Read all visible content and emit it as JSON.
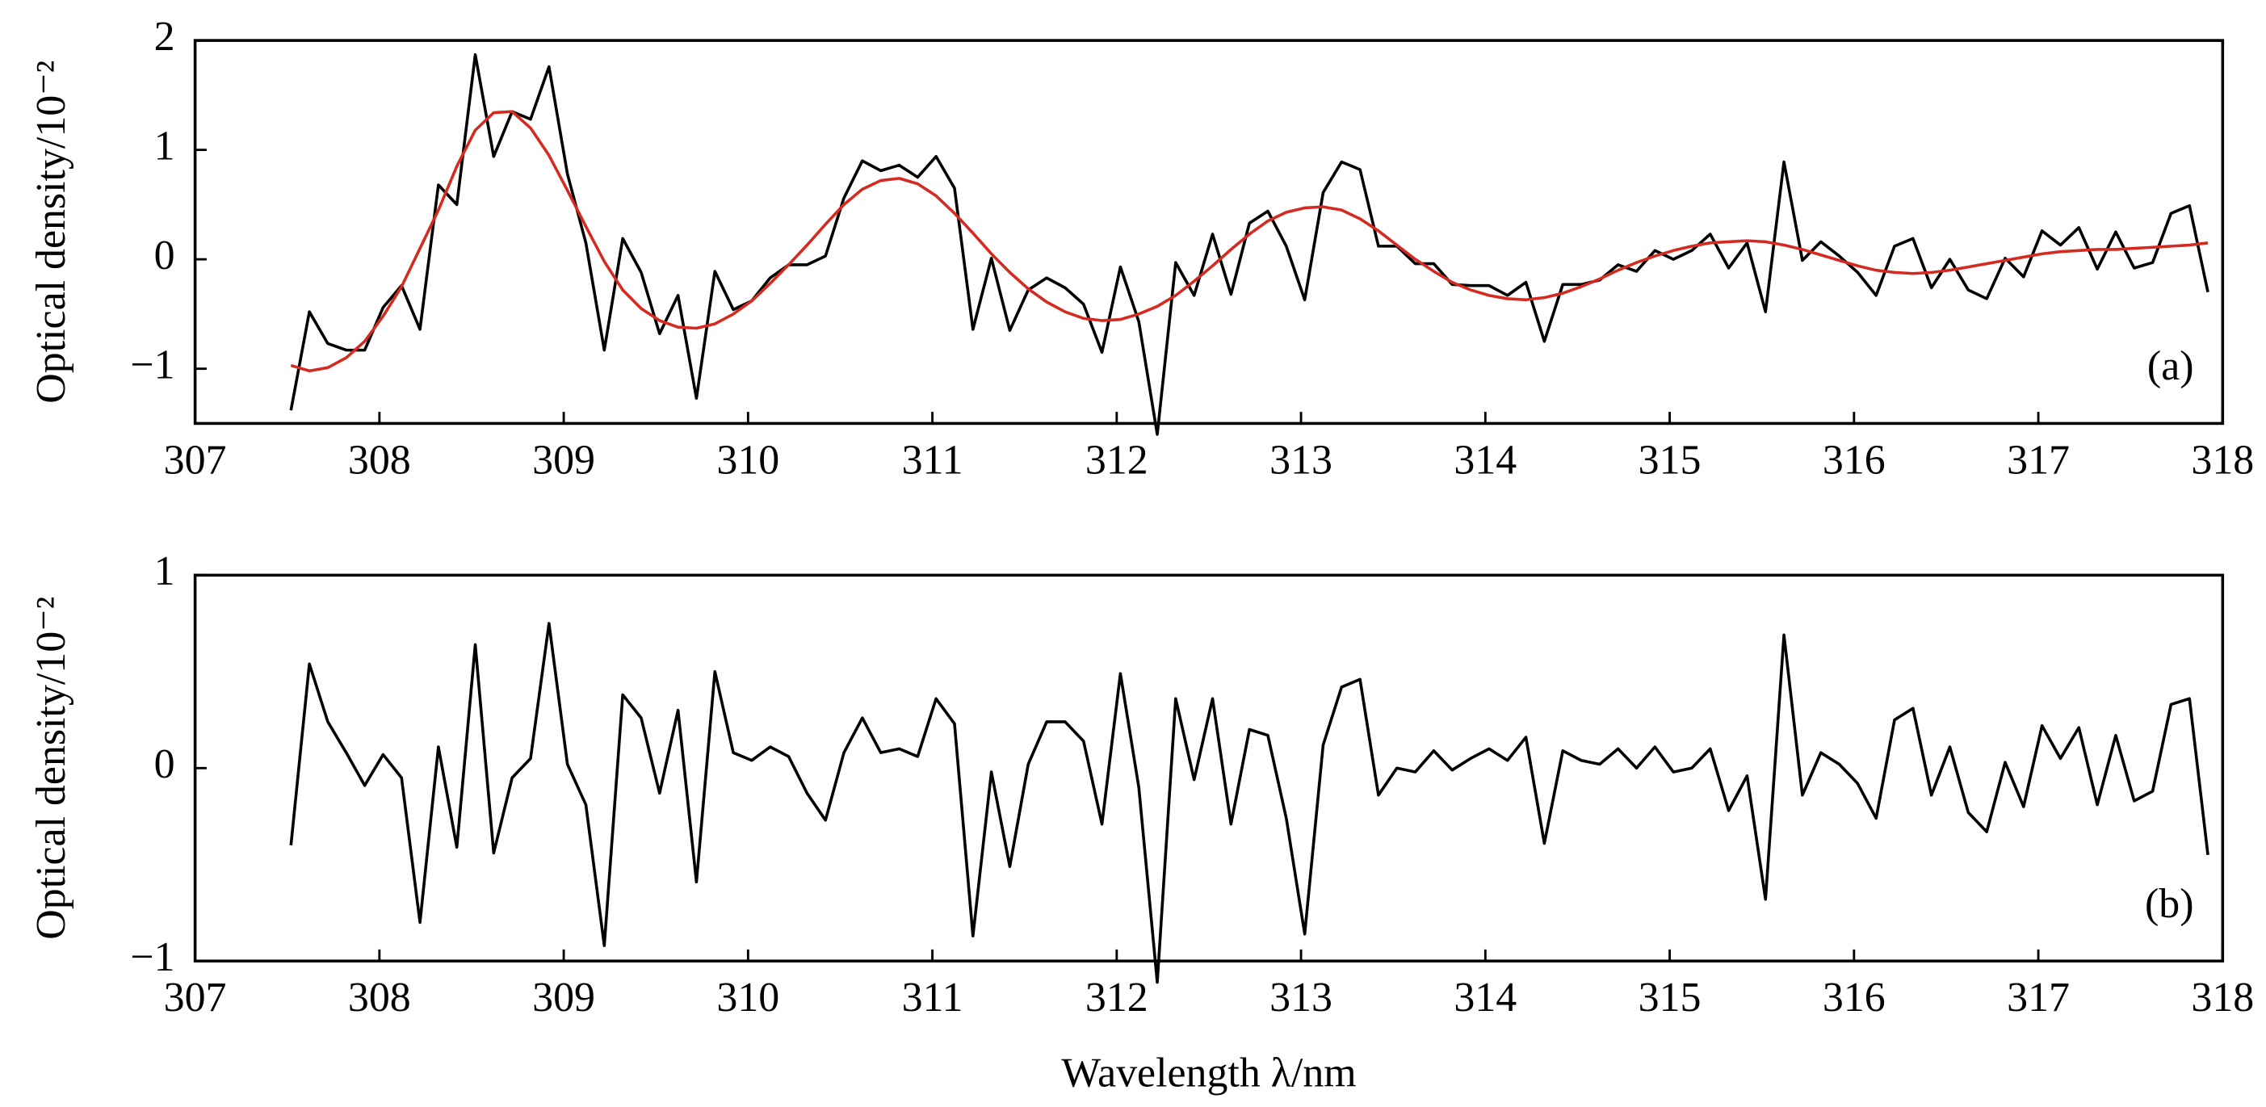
{
  "chart_data": [
    {
      "type": "line",
      "y_label": "Optical density/10⁻²",
      "annotation": "(a)",
      "x": [
        307.52,
        307.62,
        307.72,
        307.82,
        307.92,
        308.02,
        308.12,
        308.22,
        308.32,
        308.42,
        308.52,
        308.62,
        308.72,
        308.82,
        308.92,
        309.02,
        309.12,
        309.22,
        309.32,
        309.42,
        309.52,
        309.62,
        309.72,
        309.82,
        309.92,
        310.02,
        310.12,
        310.22,
        310.32,
        310.42,
        310.52,
        310.62,
        310.72,
        310.82,
        310.92,
        311.02,
        311.12,
        311.22,
        311.32,
        311.42,
        311.52,
        311.62,
        311.72,
        311.82,
        311.92,
        312.02,
        312.12,
        312.22,
        312.32,
        312.42,
        312.52,
        312.62,
        312.72,
        312.82,
        312.92,
        313.02,
        313.12,
        313.22,
        313.32,
        313.42,
        313.52,
        313.62,
        313.72,
        313.82,
        313.92,
        314.02,
        314.12,
        314.22,
        314.32,
        314.42,
        314.52,
        314.62,
        314.72,
        314.82,
        314.92,
        315.02,
        315.12,
        315.22,
        315.32,
        315.42,
        315.52,
        315.62,
        315.72,
        315.82,
        315.92,
        316.02,
        316.12,
        316.22,
        316.32,
        316.42,
        316.52,
        316.62,
        316.72,
        316.82,
        316.92,
        317.02,
        317.12,
        317.22,
        317.32,
        317.42,
        317.52,
        317.62,
        317.72,
        317.82,
        317.92
      ],
      "series": [
        {
          "color": "#000000",
          "values": [
            -1.38,
            -0.48,
            -0.77,
            -0.83,
            -0.83,
            -0.44,
            -0.24,
            -0.64,
            0.68,
            0.5,
            1.87,
            0.94,
            1.35,
            1.28,
            1.76,
            0.78,
            0.15,
            -0.83,
            0.19,
            -0.12,
            -0.68,
            -0.33,
            -1.27,
            -0.11,
            -0.46,
            -0.38,
            -0.17,
            -0.05,
            -0.05,
            0.03,
            0.56,
            0.9,
            0.81,
            0.86,
            0.75,
            0.94,
            0.65,
            -0.64,
            0.01,
            -0.65,
            -0.28,
            -0.17,
            -0.26,
            -0.41,
            -0.85,
            -0.07,
            -0.57,
            -1.6,
            -0.03,
            -0.33,
            0.23,
            -0.32,
            0.33,
            0.44,
            0.12,
            -0.37,
            0.61,
            0.89,
            0.82,
            0.12,
            0.12,
            -0.04,
            -0.04,
            -0.23,
            -0.24,
            -0.24,
            -0.33,
            -0.21,
            -0.75,
            -0.23,
            -0.23,
            -0.19,
            -0.05,
            -0.11,
            0.08,
            0,
            0.08,
            0.23,
            -0.08,
            0.15,
            -0.48,
            0.89,
            -0.01,
            0.16,
            0.03,
            -0.12,
            -0.33,
            0.12,
            0.19,
            -0.26,
            0,
            -0.28,
            -0.36,
            0.01,
            -0.16,
            0.26,
            0.13,
            0.29,
            -0.09,
            0.25,
            -0.08,
            -0.03,
            0.42,
            0.49,
            -0.3
          ]
        },
        {
          "color": "#d42a20",
          "values": [
            -0.97,
            -1.02,
            -0.99,
            -0.9,
            -0.75,
            -0.52,
            -0.25,
            0.1,
            0.45,
            0.85,
            1.18,
            1.34,
            1.35,
            1.2,
            0.95,
            0.63,
            0.3,
            -0.02,
            -0.28,
            -0.45,
            -0.56,
            -0.62,
            -0.63,
            -0.59,
            -0.5,
            -0.38,
            -0.22,
            -0.05,
            0.13,
            0.32,
            0.5,
            0.64,
            0.72,
            0.74,
            0.69,
            0.58,
            0.42,
            0.24,
            0.05,
            -0.12,
            -0.27,
            -0.39,
            -0.48,
            -0.54,
            -0.56,
            -0.55,
            -0.5,
            -0.43,
            -0.33,
            -0.2,
            -0.06,
            0.09,
            0.23,
            0.35,
            0.43,
            0.47,
            0.48,
            0.45,
            0.37,
            0.26,
            0.13,
            0,
            -0.11,
            -0.21,
            -0.28,
            -0.33,
            -0.36,
            -0.37,
            -0.35,
            -0.31,
            -0.25,
            -0.18,
            -0.1,
            -0.03,
            0.03,
            0.08,
            0.12,
            0.15,
            0.16,
            0.17,
            0.16,
            0.13,
            0.09,
            0.04,
            -0.01,
            -0.06,
            -0.1,
            -0.12,
            -0.13,
            -0.12,
            -0.1,
            -0.07,
            -0.04,
            -0.01,
            0.02,
            0.05,
            0.07,
            0.08,
            0.09,
            0.09,
            0.1,
            0.11,
            0.12,
            0.13,
            0.15
          ]
        }
      ],
      "xlim": [
        307,
        318
      ],
      "xticks": [
        307,
        308,
        309,
        310,
        311,
        312,
        313,
        314,
        315,
        316,
        317,
        318
      ],
      "ylim": [
        -1.5,
        2
      ],
      "yticks": [
        {
          "value": -1,
          "label": "−1"
        },
        0,
        1,
        2
      ],
      "grid": false
    },
    {
      "type": "line",
      "y_label": "Optical density/10⁻²",
      "x_label": "Wavelength λ/nm",
      "annotation": "(b)",
      "x": [
        307.52,
        307.62,
        307.72,
        307.82,
        307.92,
        308.02,
        308.12,
        308.22,
        308.32,
        308.42,
        308.52,
        308.62,
        308.72,
        308.82,
        308.92,
        309.02,
        309.12,
        309.22,
        309.32,
        309.42,
        309.52,
        309.62,
        309.72,
        309.82,
        309.92,
        310.02,
        310.12,
        310.22,
        310.32,
        310.42,
        310.52,
        310.62,
        310.72,
        310.82,
        310.92,
        311.02,
        311.12,
        311.22,
        311.32,
        311.42,
        311.52,
        311.62,
        311.72,
        311.82,
        311.92,
        312.02,
        312.12,
        312.22,
        312.32,
        312.42,
        312.52,
        312.62,
        312.72,
        312.82,
        312.92,
        313.02,
        313.12,
        313.22,
        313.32,
        313.42,
        313.52,
        313.62,
        313.72,
        313.82,
        313.92,
        314.02,
        314.12,
        314.22,
        314.32,
        314.42,
        314.52,
        314.62,
        314.72,
        314.82,
        314.92,
        315.02,
        315.12,
        315.22,
        315.32,
        315.42,
        315.52,
        315.62,
        315.72,
        315.82,
        315.92,
        316.02,
        316.12,
        316.22,
        316.32,
        316.42,
        316.52,
        316.62,
        316.72,
        316.82,
        316.92,
        317.02,
        317.12,
        317.22,
        317.32,
        317.42,
        317.52,
        317.62,
        317.72,
        317.82,
        317.92
      ],
      "series": [
        {
          "color": "#000000",
          "values": [
            -0.4,
            0.54,
            0.24,
            0.08,
            -0.09,
            0.07,
            -0.05,
            -0.8,
            0.11,
            -0.41,
            0.64,
            -0.44,
            -0.05,
            0.05,
            0.75,
            0.02,
            -0.19,
            -0.92,
            0.38,
            0.26,
            -0.13,
            0.3,
            -0.59,
            0.5,
            0.08,
            0.04,
            0.11,
            0.06,
            -0.13,
            -0.27,
            0.08,
            0.26,
            0.08,
            0.1,
            0.06,
            0.36,
            0.23,
            -0.87,
            -0.02,
            -0.51,
            0.02,
            0.24,
            0.24,
            0.14,
            -0.29,
            0.49,
            -0.1,
            -1.11,
            0.36,
            -0.06,
            0.36,
            -0.29,
            0.2,
            0.17,
            -0.26,
            -0.86,
            0.12,
            0.42,
            0.46,
            -0.14,
            0,
            -0.02,
            0.09,
            -0.01,
            0.05,
            0.1,
            0.04,
            0.16,
            -0.39,
            0.09,
            0.04,
            0.02,
            0.1,
            0,
            0.11,
            -0.02,
            0,
            0.1,
            -0.22,
            -0.04,
            -0.68,
            0.69,
            -0.14,
            0.08,
            0.02,
            -0.08,
            -0.26,
            0.25,
            0.31,
            -0.14,
            0.11,
            -0.23,
            -0.33,
            0.03,
            -0.2,
            0.22,
            0.05,
            0.21,
            -0.19,
            0.17,
            -0.17,
            -0.12,
            0.33,
            0.36,
            -0.45
          ]
        }
      ],
      "xlim": [
        307,
        318
      ],
      "xticks": [
        307,
        308,
        309,
        310,
        311,
        312,
        313,
        314,
        315,
        316,
        317,
        318
      ],
      "ylim": [
        -1,
        1
      ],
      "yticks": [
        {
          "value": -1,
          "label": "−1"
        },
        0,
        1
      ],
      "grid": false
    }
  ]
}
